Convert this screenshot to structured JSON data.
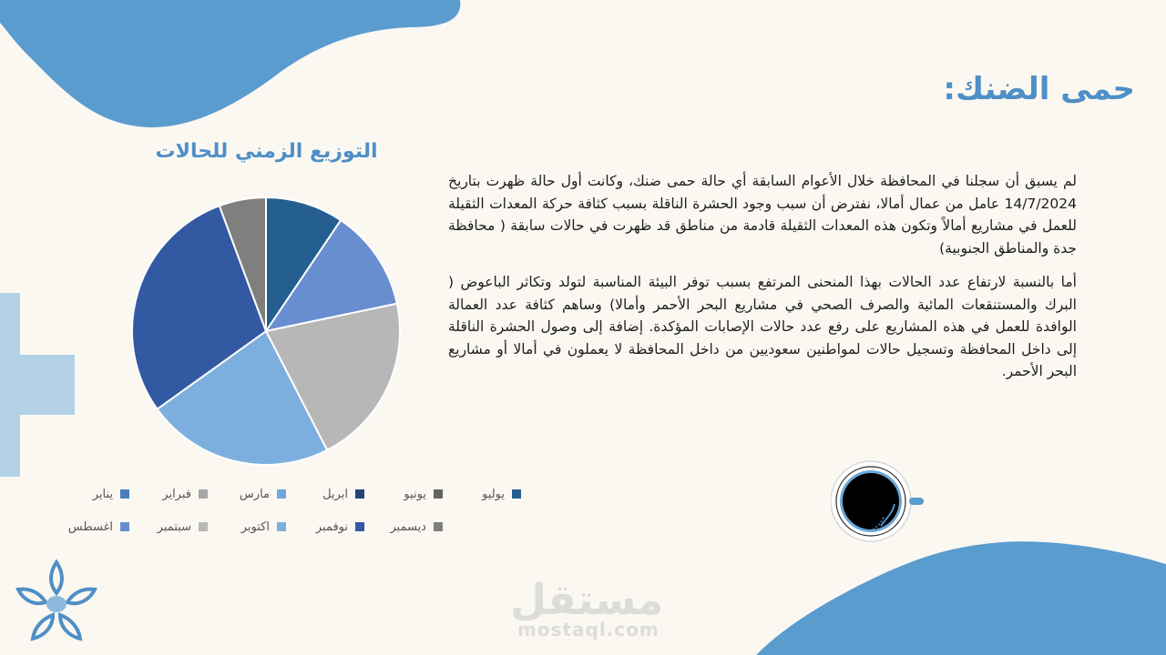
{
  "slide": {
    "title": "حمى الضنك:",
    "paragraphs": [
      "لم يسبق أن سجلنا في المحافظة خلال الأعوام السابقة أي حالة حمى ضنك، وكانت أول حالة ظهرت بتاريخ 14/7/2024  عامل من عمال أمالا، نفترض أن سبب وجود الحشرة الناقلة بسبب كثافة حركة المعدات الثقيلة للعمل في مشاريع أمالاً وتكون هذه المعدات الثقيلة قادمة من مناطق قد ظهرت في حالات سابقة ( محافظة جدة والمناطق الجنوبية)",
      "أما بالنسبة لارتفاع عدد الحالات بهذا المنحنى المرتفع بسبب توفر البيئة المناسبة لتولد وتكاثر الباعوض (  البرك والمستنقعات المائية والصرف الصحي في مشاريع البحر الأحمر وأمالا) وساهم كثافة عدد العمالة الوافدة للعمل في هذه المشاريع على رفع عدد حالات الإصابات المؤكدة.  إضافة إلى وصول الحشرة الناقلة إلى داخل المحافظة  وتسجيل حالات لمواطنين سعوديين من داخل المحافظة لا يعملون في أمالا أو مشاريع البحر الأحمر."
    ]
  },
  "watermark": {
    "main": "مستقل",
    "sub": "mostaql.com"
  },
  "chart_data": {
    "type": "pie",
    "title": "التوزيع الزمني للحالات",
    "categories": [
      "يناير",
      "فبراير",
      "مارس",
      "ابريل",
      "يونيو",
      "يوليو",
      "اغسطس",
      "سبتمبر",
      "اكتوبر",
      "نوفمبر",
      "ديسمبر"
    ],
    "values": [
      0,
      0,
      0,
      0,
      0,
      10,
      13,
      22,
      24,
      31,
      6
    ],
    "colors": [
      "#4a7ebb",
      "#a5a5a5",
      "#6fa8dc",
      "#264478",
      "#636363",
      "#255e91",
      "#698ed0",
      "#b7b7b7",
      "#7cafdd",
      "#3359a3",
      "#7f7f7f"
    ],
    "legend_placement": "bottom"
  }
}
